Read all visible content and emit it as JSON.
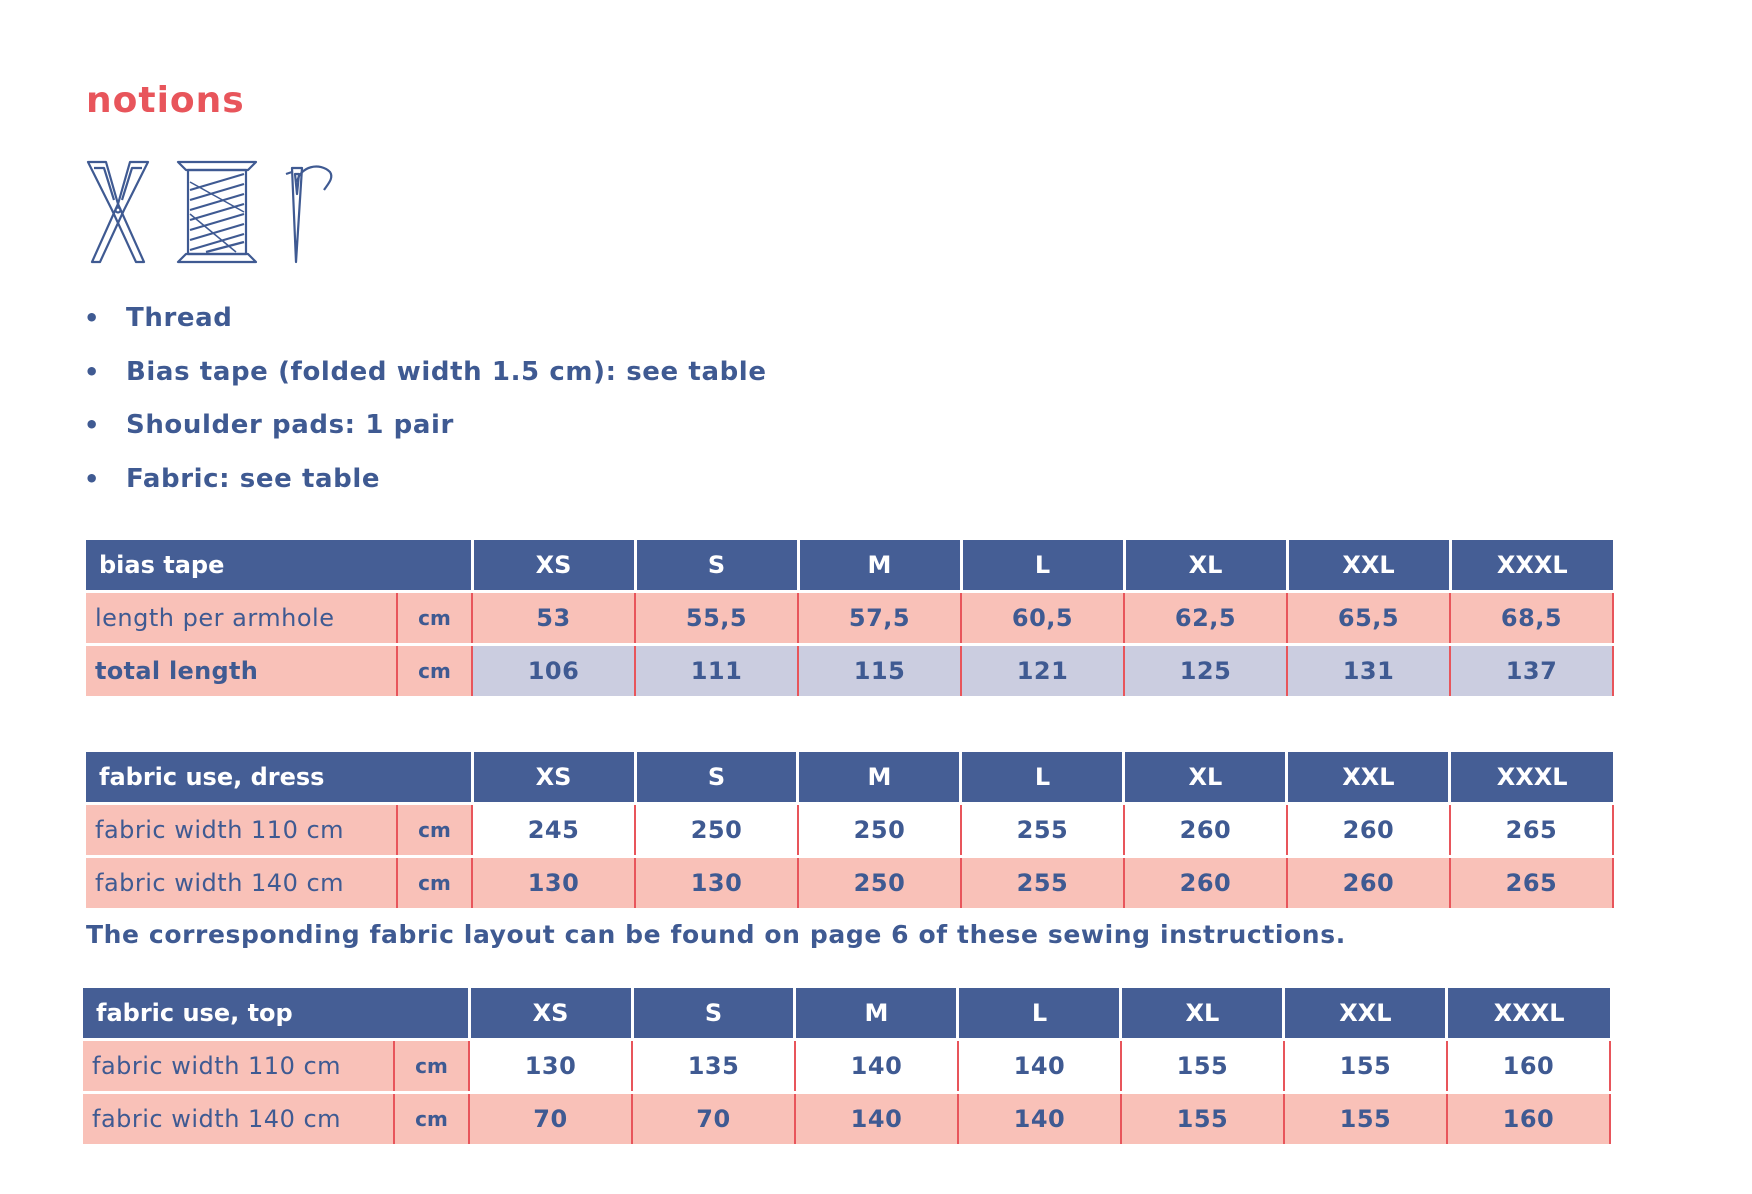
{
  "page": {
    "title": "notions"
  },
  "icons": [
    "scissors-icon",
    "thread-spool-icon",
    "needle-icon"
  ],
  "notions": [
    "Thread",
    "Bias tape (folded width 1.5 cm): see table",
    "Shoulder pads: 1 pair",
    "Fabric: see table"
  ],
  "sizes": [
    "XS",
    "S",
    "M",
    "L",
    "XL",
    "XXL",
    "XXXL"
  ],
  "bias_table": {
    "title": "bias tape",
    "rows": [
      {
        "label": "length per armhole",
        "unit": "cm",
        "values": [
          "53",
          "55,5",
          "57,5",
          "60,5",
          "62,5",
          "65,5",
          "68,5"
        ]
      },
      {
        "label": "total length",
        "unit": "cm",
        "values": [
          "106",
          "111",
          "115",
          "121",
          "125",
          "131",
          "137"
        ]
      }
    ]
  },
  "dress_table": {
    "title": "fabric use, dress",
    "rows": [
      {
        "label": "fabric width 110 cm",
        "unit": "cm",
        "values": [
          "245",
          "250",
          "250",
          "255",
          "260",
          "260",
          "265"
        ]
      },
      {
        "label": "fabric width 140 cm",
        "unit": "cm",
        "values": [
          "130",
          "130",
          "250",
          "255",
          "260",
          "260",
          "265"
        ]
      }
    ]
  },
  "note": "The corresponding fabric layout can be found on page 6 of these sewing instructions.",
  "top_table": {
    "title": "fabric use, top",
    "rows": [
      {
        "label": "fabric width 110 cm",
        "unit": "cm",
        "values": [
          "130",
          "135",
          "140",
          "140",
          "155",
          "155",
          "160"
        ]
      },
      {
        "label": "fabric width 140 cm",
        "unit": "cm",
        "values": [
          "70",
          "70",
          "140",
          "140",
          "155",
          "155",
          "160"
        ]
      }
    ]
  },
  "colors": {
    "accent": "#e8555b",
    "text": "#3f5a92",
    "header": "#455e95",
    "pink": "#f9c1b8",
    "lavender": "#cbcde0"
  }
}
